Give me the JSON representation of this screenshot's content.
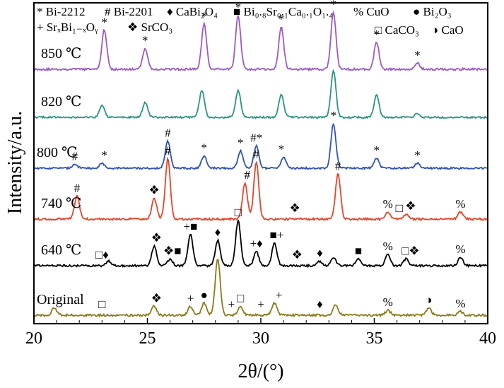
{
  "chart_data": {
    "type": "line",
    "xlabel": "2θ/(°)",
    "ylabel": "Intensity/a.u.",
    "xlim": [
      20,
      40
    ],
    "xticks": [
      "20",
      "25",
      "30",
      "35",
      "40"
    ],
    "legend": {
      "row1": [
        "* Bi-2212",
        "# Bi-2201",
        "♦ CaBi₂O₄",
        "■ Bi₀.₈Sr₀.₁Ca₀.₁O₁.₄",
        "% CuO",
        "● Bi₂O₃"
      ],
      "row2": [
        "+ SrₓBi₁₋ₓOᵧ",
        "❖ SrCO₃",
        "□ CaCO₃",
        "◑ CaO"
      ]
    },
    "series": [
      {
        "name": "850 ℃",
        "color": "#9b59c9",
        "peaks": [
          [
            23.1,
            0.65
          ],
          [
            24.9,
            0.35
          ],
          [
            27.5,
            0.75
          ],
          [
            29.0,
            0.9
          ],
          [
            30.9,
            0.7
          ],
          [
            33.2,
            0.95
          ],
          [
            35.1,
            0.45
          ],
          [
            36.9,
            0.1
          ]
        ],
        "markers": [
          {
            "x": 23.1,
            "s": "*"
          },
          {
            "x": 24.9,
            "s": "*"
          },
          {
            "x": 27.5,
            "s": "*"
          },
          {
            "x": 29.0,
            "s": "*"
          },
          {
            "x": 30.9,
            "s": "*"
          },
          {
            "x": 33.2,
            "s": "*"
          },
          {
            "x": 35.1,
            "s": "*"
          },
          {
            "x": 36.9,
            "s": "*"
          }
        ]
      },
      {
        "name": "820 ℃",
        "color": "#2a9485",
        "peaks": [
          [
            23.0,
            0.25
          ],
          [
            24.9,
            0.3
          ],
          [
            27.4,
            0.55
          ],
          [
            29.0,
            0.55
          ],
          [
            30.9,
            0.45
          ],
          [
            33.2,
            0.95
          ],
          [
            35.1,
            0.45
          ],
          [
            36.9,
            0.08
          ]
        ],
        "markers": []
      },
      {
        "name": "800 ℃",
        "color": "#2f52b8",
        "peaks": [
          [
            21.8,
            0.08
          ],
          [
            23.0,
            0.1
          ],
          [
            25.9,
            0.55
          ],
          [
            27.5,
            0.25
          ],
          [
            29.1,
            0.35
          ],
          [
            29.8,
            0.45
          ],
          [
            31.0,
            0.22
          ],
          [
            33.2,
            0.9
          ],
          [
            35.1,
            0.2
          ],
          [
            36.9,
            0.1
          ]
        ],
        "markers": [
          {
            "x": 21.8,
            "s": "#"
          },
          {
            "x": 23.1,
            "s": "*"
          },
          {
            "x": 25.9,
            "s": "#"
          },
          {
            "x": 27.5,
            "s": "*"
          },
          {
            "x": 29.1,
            "s": "*"
          },
          {
            "x": 29.8,
            "s": "#*"
          },
          {
            "x": 30.9,
            "s": "*"
          },
          {
            "x": 33.2,
            "s": "*"
          },
          {
            "x": 35.1,
            "s": "*"
          },
          {
            "x": 36.9,
            "s": "*"
          }
        ]
      },
      {
        "name": "740 ℃",
        "color": "#e5452b",
        "peaks": [
          [
            21.9,
            0.38
          ],
          [
            25.3,
            0.35
          ],
          [
            25.9,
            1.0
          ],
          [
            29.3,
            0.6
          ],
          [
            29.8,
            0.95
          ],
          [
            33.4,
            0.75
          ],
          [
            35.6,
            0.12
          ],
          [
            36.4,
            0.08
          ],
          [
            38.8,
            0.12
          ]
        ],
        "markers": [
          {
            "x": 21.9,
            "s": "#"
          },
          {
            "x": 25.3,
            "s": "❖"
          },
          {
            "x": 25.9,
            "s": "#"
          },
          {
            "x": 29.4,
            "s": "#"
          },
          {
            "x": 29.8,
            "s": "#"
          },
          {
            "x": 31.5,
            "s": "❖"
          },
          {
            "x": 33.4,
            "s": "#"
          },
          {
            "x": 35.6,
            "s": "%"
          },
          {
            "x": 36.1,
            "s": "□"
          },
          {
            "x": 36.6,
            "s": "❖"
          },
          {
            "x": 38.8,
            "s": "%"
          }
        ]
      },
      {
        "name": "640 ℃",
        "color": "#000000",
        "peaks": [
          [
            23.3,
            0.08
          ],
          [
            25.3,
            0.35
          ],
          [
            26.0,
            0.12
          ],
          [
            26.9,
            0.55
          ],
          [
            28.1,
            0.45
          ],
          [
            29.0,
            0.8
          ],
          [
            29.8,
            0.25
          ],
          [
            30.6,
            0.4
          ],
          [
            32.6,
            0.08
          ],
          [
            33.2,
            0.15
          ],
          [
            34.3,
            0.12
          ],
          [
            35.6,
            0.2
          ],
          [
            36.4,
            0.12
          ],
          [
            38.8,
            0.15
          ]
        ],
        "markers": [
          {
            "x": 23.0,
            "s": "□♦"
          },
          {
            "x": 25.4,
            "s": "❖"
          },
          {
            "x": 26.1,
            "s": "❖■"
          },
          {
            "x": 26.9,
            "s": "+■"
          },
          {
            "x": 28.1,
            "s": "♦"
          },
          {
            "x": 29.0,
            "s": "□"
          },
          {
            "x": 29.8,
            "s": "+♦"
          },
          {
            "x": 30.7,
            "s": "■+"
          },
          {
            "x": 31.6,
            "s": "❖"
          },
          {
            "x": 32.6,
            "s": "♦"
          },
          {
            "x": 34.3,
            "s": "■"
          },
          {
            "x": 35.6,
            "s": "%"
          },
          {
            "x": 36.6,
            "s": "□❖"
          },
          {
            "x": 38.8,
            "s": "%"
          }
        ]
      },
      {
        "name": "Original",
        "color": "#8a7a1a",
        "peaks": [
          [
            20.9,
            0.12
          ],
          [
            25.3,
            0.15
          ],
          [
            26.9,
            0.15
          ],
          [
            27.5,
            0.2
          ],
          [
            28.1,
            0.95
          ],
          [
            29.1,
            0.15
          ],
          [
            30.6,
            0.2
          ],
          [
            33.3,
            0.18
          ],
          [
            35.6,
            0.08
          ],
          [
            37.4,
            0.12
          ],
          [
            38.8,
            0.06
          ]
        ],
        "markers": [
          {
            "x": 23.0,
            "s": "□"
          },
          {
            "x": 25.4,
            "s": "❖"
          },
          {
            "x": 26.9,
            "s": "+"
          },
          {
            "x": 27.5,
            "s": "●"
          },
          {
            "x": 28.7,
            "s": "+"
          },
          {
            "x": 29.1,
            "s": "□"
          },
          {
            "x": 30.0,
            "s": "+"
          },
          {
            "x": 30.8,
            "s": "+"
          },
          {
            "x": 32.6,
            "s": "♦"
          },
          {
            "x": 35.6,
            "s": "%"
          },
          {
            "x": 37.4,
            "s": "◑"
          },
          {
            "x": 38.8,
            "s": "%"
          }
        ]
      }
    ]
  }
}
